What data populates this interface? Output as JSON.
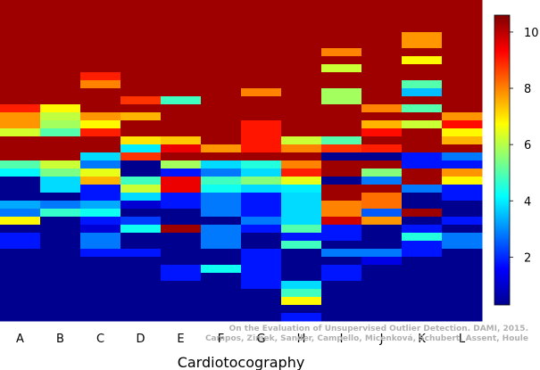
{
  "chart_data": {
    "type": "heatmap",
    "xlabel": "Cardiotocography",
    "categories": [
      "A",
      "B",
      "C",
      "D",
      "E",
      "F",
      "G",
      "H",
      "I",
      "J",
      "K",
      "L"
    ],
    "colorbar": {
      "ticks": [
        2,
        4,
        6,
        8,
        10
      ],
      "min": 0.3,
      "max": 10.6
    },
    "colormap": [
      "#00008f",
      "#0000ff",
      "#0080ff",
      "#00ffff",
      "#80ff80",
      "#ffff00",
      "#ff8000",
      "#ff0000",
      "#800000"
    ],
    "n_rows": 40,
    "columns": [
      {
        "name": "A",
        "segments": [
          [
            0,
            13,
            10.3
          ],
          [
            13,
            14,
            9
          ],
          [
            14,
            16,
            7.8
          ],
          [
            16,
            17,
            6.3
          ],
          [
            17,
            20,
            10.3
          ],
          [
            20,
            21,
            5
          ],
          [
            21,
            22,
            4.1
          ],
          [
            22,
            25,
            0.3
          ],
          [
            25,
            26,
            3.3
          ],
          [
            26,
            27,
            2.8
          ],
          [
            27,
            28,
            6.8
          ],
          [
            28,
            29,
            0.3
          ],
          [
            29,
            31,
            1.8
          ],
          [
            31,
            40,
            0.3
          ]
        ]
      },
      {
        "name": "B",
        "segments": [
          [
            0,
            13,
            10.3
          ],
          [
            13,
            14,
            6.8
          ],
          [
            14,
            15,
            6.1
          ],
          [
            15,
            16,
            5.8
          ],
          [
            16,
            17,
            5
          ],
          [
            17,
            20,
            10.3
          ],
          [
            20,
            21,
            6.2
          ],
          [
            21,
            22,
            5.4
          ],
          [
            22,
            24,
            3.8
          ],
          [
            24,
            25,
            0.3
          ],
          [
            25,
            26,
            2.8
          ],
          [
            26,
            27,
            4.7
          ],
          [
            27,
            40,
            0.3
          ]
        ]
      },
      {
        "name": "C",
        "segments": [
          [
            0,
            9,
            10.3
          ],
          [
            9,
            10,
            9
          ],
          [
            10,
            11,
            8
          ],
          [
            11,
            14,
            10.3
          ],
          [
            14,
            15,
            7.8
          ],
          [
            15,
            16,
            6.8
          ],
          [
            16,
            17,
            9
          ],
          [
            17,
            19,
            10.3
          ],
          [
            19,
            20,
            3.8
          ],
          [
            20,
            21,
            2.8
          ],
          [
            21,
            22,
            6.5
          ],
          [
            22,
            23,
            7.5
          ],
          [
            23,
            25,
            1.8
          ],
          [
            25,
            26,
            3.3
          ],
          [
            26,
            27,
            4.3
          ],
          [
            27,
            28,
            1.8
          ],
          [
            28,
            29,
            1.1
          ],
          [
            29,
            31,
            2.8
          ],
          [
            31,
            32,
            1.8
          ],
          [
            32,
            40,
            0.3
          ]
        ]
      },
      {
        "name": "D",
        "segments": [
          [
            0,
            12,
            10.3
          ],
          [
            12,
            13,
            8.8
          ],
          [
            13,
            14,
            10.3
          ],
          [
            14,
            15,
            7.5
          ],
          [
            15,
            17,
            10.3
          ],
          [
            17,
            18,
            7
          ],
          [
            18,
            19,
            4
          ],
          [
            19,
            20,
            8.8
          ],
          [
            20,
            22,
            0.3
          ],
          [
            22,
            23,
            4.8
          ],
          [
            23,
            24,
            6.2
          ],
          [
            24,
            25,
            3.8
          ],
          [
            25,
            26,
            1.1
          ],
          [
            26,
            27,
            0.3
          ],
          [
            27,
            28,
            2.2
          ],
          [
            28,
            29,
            4.3
          ],
          [
            29,
            31,
            0.3
          ],
          [
            31,
            32,
            1.8
          ],
          [
            32,
            40,
            0.3
          ]
        ]
      },
      {
        "name": "E",
        "segments": [
          [
            0,
            12,
            10.3
          ],
          [
            12,
            13,
            4.8
          ],
          [
            13,
            17,
            10.3
          ],
          [
            17,
            18,
            7.3
          ],
          [
            18,
            19,
            9.5
          ],
          [
            19,
            20,
            10.3
          ],
          [
            20,
            21,
            5.8
          ],
          [
            21,
            22,
            1.8
          ],
          [
            22,
            24,
            9.5
          ],
          [
            24,
            26,
            1.8
          ],
          [
            26,
            28,
            0.3
          ],
          [
            28,
            29,
            10.3
          ],
          [
            29,
            33,
            0.3
          ],
          [
            33,
            35,
            1.8
          ],
          [
            35,
            40,
            0.3
          ]
        ]
      },
      {
        "name": "F",
        "segments": [
          [
            0,
            18,
            10.3
          ],
          [
            18,
            19,
            7.8
          ],
          [
            19,
            20,
            10.3
          ],
          [
            20,
            21,
            3.8
          ],
          [
            21,
            22,
            2.8
          ],
          [
            22,
            23,
            4.8
          ],
          [
            23,
            24,
            4.3
          ],
          [
            24,
            27,
            2.8
          ],
          [
            27,
            28,
            0.3
          ],
          [
            28,
            31,
            2.8
          ],
          [
            31,
            33,
            0.3
          ],
          [
            33,
            34,
            4.3
          ],
          [
            34,
            40,
            0.3
          ]
        ]
      },
      {
        "name": "G",
        "segments": [
          [
            0,
            11,
            10.3
          ],
          [
            11,
            12,
            8
          ],
          [
            12,
            15,
            10.3
          ],
          [
            15,
            19,
            9.1
          ],
          [
            19,
            20,
            10.3
          ],
          [
            20,
            21,
            4.5
          ],
          [
            21,
            22,
            3.8
          ],
          [
            22,
            23,
            5.5
          ],
          [
            23,
            24,
            3.8
          ],
          [
            24,
            27,
            1.8
          ],
          [
            27,
            28,
            2.8
          ],
          [
            28,
            29,
            1.8
          ],
          [
            29,
            31,
            0.3
          ],
          [
            31,
            36,
            1.8
          ],
          [
            36,
            40,
            0.3
          ]
        ]
      },
      {
        "name": "H",
        "segments": [
          [
            0,
            17,
            10.3
          ],
          [
            17,
            18,
            6.2
          ],
          [
            18,
            19,
            8
          ],
          [
            19,
            20,
            10.3
          ],
          [
            20,
            21,
            8
          ],
          [
            21,
            22,
            9
          ],
          [
            22,
            23,
            6.5
          ],
          [
            23,
            24,
            4
          ],
          [
            24,
            28,
            3.8
          ],
          [
            28,
            29,
            5
          ],
          [
            29,
            30,
            1.8
          ],
          [
            30,
            31,
            4.8
          ],
          [
            31,
            35,
            0.3
          ],
          [
            35,
            36,
            3.8
          ],
          [
            36,
            37,
            4.8
          ],
          [
            37,
            38,
            6.8
          ],
          [
            38,
            39,
            0.3
          ],
          [
            39,
            40,
            1.8
          ]
        ]
      },
      {
        "name": "I",
        "segments": [
          [
            0,
            6,
            10.3
          ],
          [
            6,
            7,
            8
          ],
          [
            7,
            8,
            10.3
          ],
          [
            8,
            9,
            6.2
          ],
          [
            9,
            11,
            10.3
          ],
          [
            11,
            13,
            5.8
          ],
          [
            13,
            17,
            10.3
          ],
          [
            17,
            18,
            5
          ],
          [
            18,
            19,
            8.8
          ],
          [
            19,
            20,
            0.3
          ],
          [
            20,
            22,
            10.3
          ],
          [
            22,
            23,
            0.3
          ],
          [
            23,
            25,
            10.3
          ],
          [
            25,
            27,
            8
          ],
          [
            27,
            28,
            9.8
          ],
          [
            28,
            30,
            1.8
          ],
          [
            30,
            31,
            0.3
          ],
          [
            31,
            32,
            2.8
          ],
          [
            32,
            33,
            0.3
          ],
          [
            33,
            35,
            1.8
          ],
          [
            35,
            40,
            0.3
          ]
        ]
      },
      {
        "name": "J",
        "segments": [
          [
            0,
            13,
            10.3
          ],
          [
            13,
            14,
            8
          ],
          [
            14,
            15,
            10.3
          ],
          [
            15,
            16,
            7.5
          ],
          [
            16,
            17,
            9.2
          ],
          [
            17,
            18,
            10.3
          ],
          [
            18,
            19,
            9
          ],
          [
            19,
            20,
            0.3
          ],
          [
            20,
            21,
            10.3
          ],
          [
            21,
            22,
            5.5
          ],
          [
            22,
            23,
            2.8
          ],
          [
            23,
            24,
            10.3
          ],
          [
            24,
            26,
            8.2
          ],
          [
            26,
            27,
            2.5
          ],
          [
            27,
            28,
            7.8
          ],
          [
            28,
            31,
            0.3
          ],
          [
            31,
            32,
            2.8
          ],
          [
            32,
            33,
            1.3
          ],
          [
            33,
            40,
            0.3
          ]
        ]
      },
      {
        "name": "K",
        "segments": [
          [
            0,
            4,
            10.3
          ],
          [
            4,
            6,
            7.8
          ],
          [
            6,
            7,
            10.3
          ],
          [
            7,
            8,
            6.8
          ],
          [
            8,
            10,
            10.3
          ],
          [
            10,
            11,
            5
          ],
          [
            11,
            12,
            3.5
          ],
          [
            12,
            13,
            10.3
          ],
          [
            13,
            14,
            5
          ],
          [
            14,
            15,
            10.3
          ],
          [
            15,
            16,
            6.2
          ],
          [
            16,
            19,
            10.3
          ],
          [
            19,
            21,
            1.8
          ],
          [
            21,
            23,
            10.3
          ],
          [
            23,
            24,
            2.8
          ],
          [
            24,
            26,
            0.3
          ],
          [
            26,
            27,
            10.3
          ],
          [
            27,
            28,
            0.3
          ],
          [
            28,
            29,
            1.8
          ],
          [
            29,
            30,
            4.5
          ],
          [
            30,
            32,
            1.8
          ],
          [
            32,
            40,
            0.3
          ]
        ]
      },
      {
        "name": "L",
        "segments": [
          [
            0,
            14,
            10.3
          ],
          [
            14,
            15,
            7.8
          ],
          [
            15,
            16,
            9.2
          ],
          [
            16,
            17,
            6.8
          ],
          [
            17,
            18,
            7.5
          ],
          [
            18,
            19,
            10.3
          ],
          [
            19,
            20,
            2.8
          ],
          [
            20,
            21,
            1.8
          ],
          [
            21,
            22,
            7.8
          ],
          [
            22,
            23,
            6.8
          ],
          [
            23,
            25,
            1.8
          ],
          [
            25,
            27,
            0.3
          ],
          [
            27,
            28,
            1.8
          ],
          [
            28,
            29,
            0.3
          ],
          [
            29,
            31,
            2.8
          ],
          [
            31,
            40,
            0.3
          ]
        ]
      }
    ]
  },
  "watermark": {
    "line1": "On the Evaluation of Unsupervised Outlier Detection. DAMI, 2015.",
    "line2": "Campos, Zimek, Sander, Campello, Micenková, Schubert, Assent, Houle"
  }
}
